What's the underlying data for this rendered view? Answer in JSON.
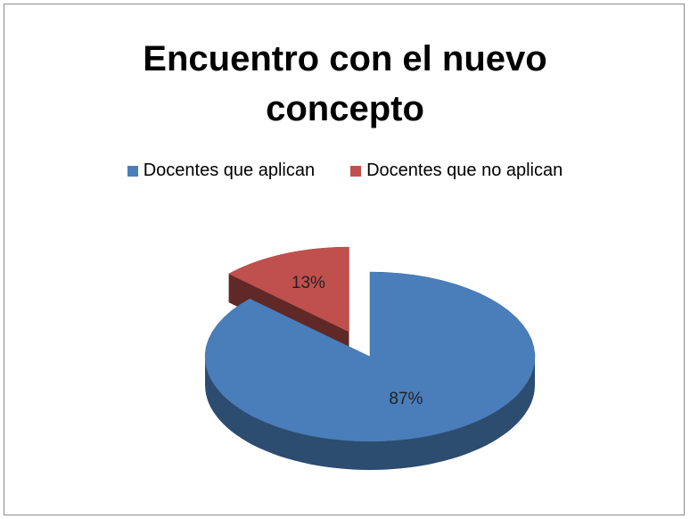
{
  "chart_data": {
    "type": "pie3d",
    "title": "Encuentro con el nuevo concepto",
    "categories": [
      "Docentes que aplican",
      "Docentes que no aplican"
    ],
    "values": [
      87,
      13
    ],
    "value_labels": [
      "87%",
      "13%"
    ],
    "colors": [
      "#4a7ebb",
      "#c0504d"
    ],
    "legend": "top",
    "exploded": [
      false,
      true
    ]
  }
}
